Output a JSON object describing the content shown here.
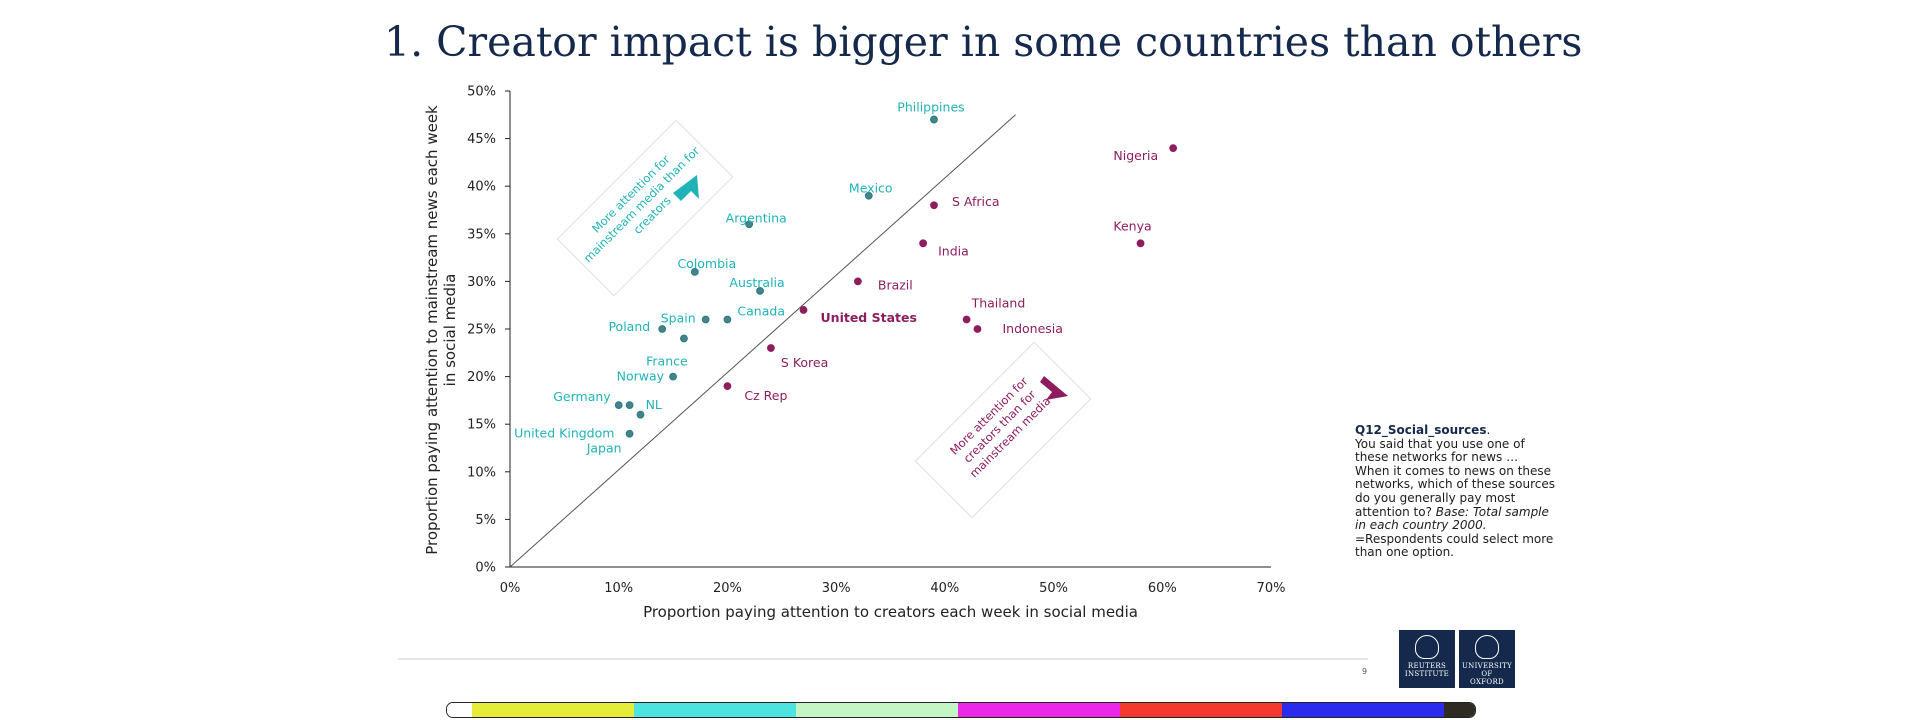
{
  "title": "1. Creator impact is bigger in some countries than others",
  "chart_data": {
    "type": "scatter",
    "xlabel": "Proportion paying attention to creators each week in social media",
    "ylabel_lines": [
      "Proportion paying attention to mainstream news each week",
      "in social media"
    ],
    "xlim": [
      0,
      70
    ],
    "ylim": [
      0,
      50
    ],
    "xticks": [
      0,
      10,
      20,
      30,
      40,
      50,
      60,
      70
    ],
    "yticks": [
      0,
      5,
      10,
      15,
      20,
      25,
      30,
      35,
      40,
      45,
      50
    ],
    "tick_suffix": "%",
    "reference_line": {
      "from": [
        0,
        0
      ],
      "to": [
        46.5,
        47.5
      ]
    },
    "colors": {
      "mainstream": "#1fb3b8",
      "creators": "#8e1d5f",
      "point_fill": "#4c7f86",
      "axis": "#222222"
    },
    "points": [
      {
        "label": "Philippines",
        "x": 39,
        "y": 47,
        "group": "mainstream",
        "bold": false
      },
      {
        "label": "Mexico",
        "x": 33,
        "y": 39,
        "group": "mainstream",
        "bold": false
      },
      {
        "label": "Argentina",
        "x": 22,
        "y": 36,
        "group": "mainstream",
        "bold": false
      },
      {
        "label": "Colombia",
        "x": 17,
        "y": 31,
        "group": "mainstream",
        "bold": false
      },
      {
        "label": "Australia",
        "x": 23,
        "y": 29,
        "group": "mainstream",
        "bold": false
      },
      {
        "label": "Canada",
        "x": 20,
        "y": 26,
        "group": "mainstream",
        "bold": false
      },
      {
        "label": "Spain",
        "x": 18,
        "y": 26,
        "group": "mainstream",
        "bold": false
      },
      {
        "label": "Poland",
        "x": 14,
        "y": 25,
        "group": "mainstream",
        "bold": false
      },
      {
        "label": "France",
        "x": 16,
        "y": 24,
        "group": "mainstream",
        "bold": false
      },
      {
        "label": "Norway",
        "x": 15,
        "y": 20,
        "group": "mainstream",
        "bold": false
      },
      {
        "label": "Germany",
        "x": 10,
        "y": 17,
        "group": "mainstream",
        "bold": false
      },
      {
        "label": "NL",
        "x": 11,
        "y": 17,
        "group": "mainstream",
        "bold": false
      },
      {
        "label": "United Kingdom",
        "x": 12,
        "y": 16,
        "group": "mainstream",
        "bold": false
      },
      {
        "label": "Japan",
        "x": 11,
        "y": 14,
        "group": "mainstream",
        "bold": false
      },
      {
        "label": "Nigeria",
        "x": 61,
        "y": 44,
        "group": "creators",
        "bold": false
      },
      {
        "label": "S Africa",
        "x": 39,
        "y": 38,
        "group": "creators",
        "bold": false
      },
      {
        "label": "India",
        "x": 38,
        "y": 34,
        "group": "creators",
        "bold": false
      },
      {
        "label": "Kenya",
        "x": 58,
        "y": 34,
        "group": "creators",
        "bold": false
      },
      {
        "label": "Brazil",
        "x": 32,
        "y": 30,
        "group": "creators",
        "bold": false
      },
      {
        "label": "United States",
        "x": 27,
        "y": 27,
        "group": "creators",
        "bold": true
      },
      {
        "label": "Thailand",
        "x": 42,
        "y": 26,
        "group": "creators",
        "bold": false
      },
      {
        "label": "Indonesia",
        "x": 43,
        "y": 25,
        "group": "creators",
        "bold": false
      },
      {
        "label": "S Korea",
        "x": 24,
        "y": 23,
        "group": "creators",
        "bold": false
      },
      {
        "label": "Cz Rep",
        "x": 20,
        "y": 19,
        "group": "creators",
        "bold": false
      }
    ],
    "annotations": [
      {
        "id": "mainstream",
        "lines": [
          "More attention for",
          "mainstream media than for",
          "creators"
        ]
      },
      {
        "id": "creators",
        "lines": [
          "More attention for",
          "creators than for",
          "mainstream media"
        ]
      }
    ]
  },
  "note": {
    "title": "Q12_Social_sources",
    "title_suffix": ".",
    "body": "You said that you use one of these networks for news … When it comes to news on these networks, which of these sources do you generally pay most attention to?",
    "base": "Base: Total sample in each country  2000.",
    "footnote": "=Respondents could select more than one option."
  },
  "page_number": "9",
  "logos": {
    "reuters": [
      "REUTERS",
      "INSTITUTE"
    ],
    "oxford": [
      "UNIVERSITY OF",
      "OXFORD"
    ]
  },
  "strip_colors": [
    "#ffffff",
    "#e5ec3a",
    "#4de3df",
    "#c3f6c4",
    "#eb28e6",
    "#f43a2e",
    "#2a2bec",
    "#2f2a22"
  ]
}
